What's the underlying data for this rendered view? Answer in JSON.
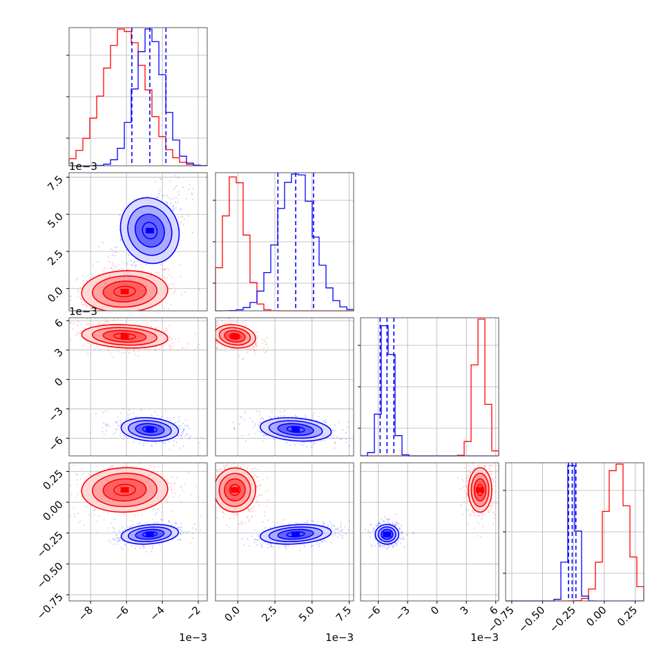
{
  "figure": {
    "type": "corner-plot",
    "n_params": 4,
    "grid": true
  },
  "colors": {
    "red_series": "#ff0000",
    "blue_series": "#0000ff",
    "quantile_line": "#0000ff",
    "grid": "#b0b0b0",
    "frame": "#555555"
  },
  "chart_data": {
    "type": "corner",
    "params": [
      {
        "index": 0,
        "range": [
          -0.0092,
          -0.0015
        ],
        "ticks": [
          -0.008,
          -0.006,
          -0.004,
          -0.002
        ],
        "tick_labels": [
          "−8",
          "−6",
          "−4",
          "−2"
        ],
        "offset_label": "1e−3",
        "quantiles_blue": [
          -0.0057,
          -0.0047,
          -0.0038
        ],
        "red": {
          "mean": -0.0061,
          "sd": 0.0012
        },
        "blue": {
          "mean": -0.0047,
          "sd": 0.0008
        }
      },
      {
        "index": 1,
        "range": [
          -0.0015,
          0.0078
        ],
        "ticks": [
          0.0,
          0.0025,
          0.005,
          0.0075
        ],
        "tick_labels": [
          "0.0",
          "2.5",
          "5.0",
          "7.5"
        ],
        "offset_label": "1e−3",
        "quantiles_blue": [
          0.0027,
          0.0039,
          0.0051
        ],
        "red": {
          "mean": -0.0002,
          "sd": 0.0007
        },
        "blue": {
          "mean": 0.0039,
          "sd": 0.0012
        }
      },
      {
        "index": 2,
        "range": [
          -0.0078,
          0.0063
        ],
        "ticks": [
          -0.006,
          -0.003,
          0.0,
          0.003,
          0.006
        ],
        "tick_labels": [
          "−6",
          "−3",
          "0",
          "3",
          "6"
        ],
        "offset_label": "1e−3",
        "quantiles_blue": [
          -0.0058,
          -0.0051,
          -0.0044
        ],
        "red": {
          "mean": 0.0044,
          "sd": 0.0006
        },
        "blue": {
          "mean": -0.0051,
          "sd": 0.0006
        }
      },
      {
        "index": 3,
        "range": [
          -0.8,
          0.32
        ],
        "ticks": [
          -0.75,
          -0.5,
          -0.25,
          0.0,
          0.25
        ],
        "tick_labels": [
          "−0.75",
          "−0.50",
          "−0.25",
          "0.00",
          "0.25"
        ],
        "offset_label": "",
        "quantiles_blue": [
          -0.29,
          -0.26,
          -0.23
        ],
        "red": {
          "mean": 0.1,
          "sd": 0.09
        },
        "blue": {
          "mean": -0.26,
          "sd": 0.04
        }
      }
    ],
    "pairs": [
      {
        "x": 0,
        "y": 1,
        "red": {
          "cx": -0.0061,
          "cy": -0.0002,
          "sx": 0.0012,
          "sy": 0.0007,
          "rho": 0.15
        },
        "blue": {
          "cx": -0.0047,
          "cy": 0.0039,
          "sx": 0.0008,
          "sy": 0.0012,
          "rho": 0.55
        }
      },
      {
        "x": 0,
        "y": 2,
        "red": {
          "cx": -0.0061,
          "cy": 0.0044,
          "sx": 0.0012,
          "sy": 0.0006,
          "rho": -0.3
        },
        "blue": {
          "cx": -0.0047,
          "cy": -0.0051,
          "sx": 0.0008,
          "sy": 0.0006,
          "rho": -0.3
        }
      },
      {
        "x": 0,
        "y": 3,
        "red": {
          "cx": -0.0061,
          "cy": 0.1,
          "sx": 0.0012,
          "sy": 0.09,
          "rho": 0.1
        },
        "blue": {
          "cx": -0.0047,
          "cy": -0.26,
          "sx": 0.0008,
          "sy": 0.04,
          "rho": 0.4
        }
      },
      {
        "x": 1,
        "y": 2,
        "red": {
          "cx": -0.0002,
          "cy": 0.0044,
          "sx": 0.0007,
          "sy": 0.0006,
          "rho": -0.4
        },
        "blue": {
          "cx": 0.0039,
          "cy": -0.0051,
          "sx": 0.0012,
          "sy": 0.0006,
          "rho": -0.4
        }
      },
      {
        "x": 1,
        "y": 3,
        "red": {
          "cx": -0.0002,
          "cy": 0.1,
          "sx": 0.0007,
          "sy": 0.09,
          "rho": -0.2
        },
        "blue": {
          "cx": 0.0039,
          "cy": -0.26,
          "sx": 0.0012,
          "sy": 0.04,
          "rho": 0.4
        }
      },
      {
        "x": 2,
        "y": 3,
        "red": {
          "cx": 0.0044,
          "cy": 0.1,
          "sx": 0.0006,
          "sy": 0.09,
          "rho": 0.0
        },
        "blue": {
          "cx": -0.0051,
          "cy": -0.26,
          "sx": 0.0006,
          "sy": 0.04,
          "rho": 0.0
        }
      }
    ]
  }
}
